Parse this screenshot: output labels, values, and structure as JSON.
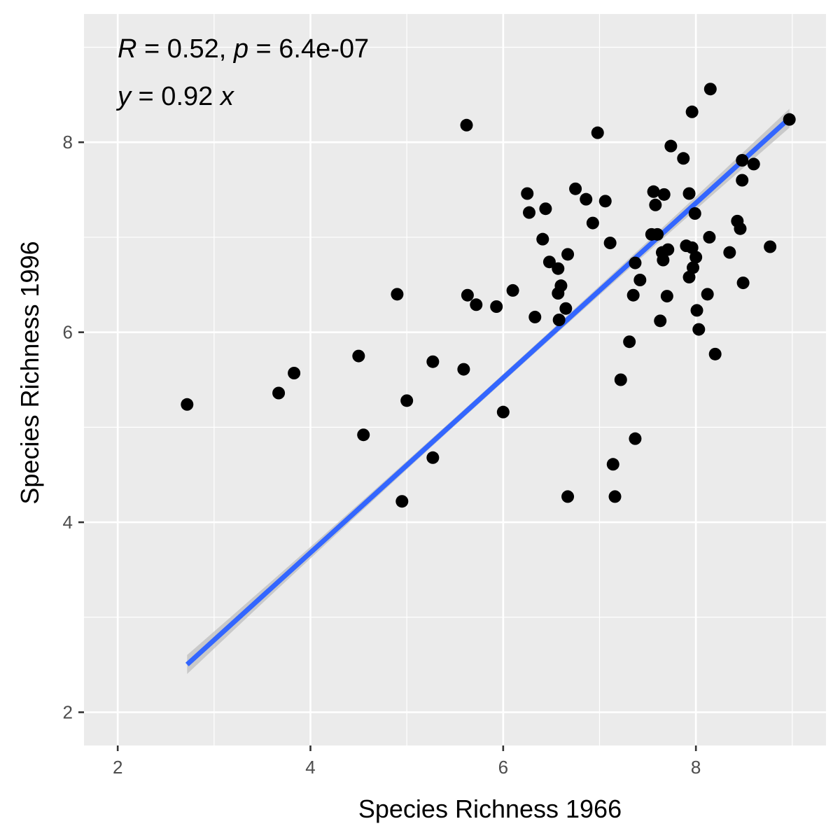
{
  "chart_data": {
    "type": "scatter",
    "xlabel": "Species Richness 1966",
    "ylabel": "Species Richness 1996",
    "xlim": [
      1.65,
      9.35
    ],
    "ylim": [
      1.65,
      9.35
    ],
    "x_ticks": [
      2,
      4,
      6,
      8
    ],
    "y_ticks": [
      2,
      4,
      6,
      8
    ],
    "x_tick_labels": [
      "2",
      "4",
      "6",
      "8"
    ],
    "y_tick_labels": [
      "2",
      "4",
      "6",
      "8"
    ],
    "grid": true,
    "legend": "none",
    "annotations": {
      "line1": {
        "R_symbol": "R",
        "R_text": " = 0.52, ",
        "p_symbol": "p",
        "p_text": " = 6.4e-07"
      },
      "line2": {
        "y_symbol": "y",
        "eq_text": " = 0.92 ",
        "x_symbol": "x"
      }
    },
    "regression": {
      "slope": 0.92,
      "intercept": 0,
      "x_range": [
        2.72,
        8.97
      ],
      "ci_halfwidth_ends": 0.1,
      "ci_halfwidth_center": 0.04,
      "line_color": "#3366FF",
      "ribbon_color": "#BEBEBE"
    },
    "point_color": "#000000",
    "panel_background": "#EBEBEB",
    "grid_color": "#FFFFFF",
    "points": [
      [
        2.72,
        5.24
      ],
      [
        3.67,
        5.36
      ],
      [
        3.83,
        5.57
      ],
      [
        4.5,
        5.75
      ],
      [
        4.55,
        4.92
      ],
      [
        4.9,
        6.4
      ],
      [
        4.95,
        4.22
      ],
      [
        5.0,
        5.28
      ],
      [
        5.27,
        5.69
      ],
      [
        5.27,
        4.68
      ],
      [
        5.59,
        5.61
      ],
      [
        5.62,
        8.18
      ],
      [
        5.63,
        6.39
      ],
      [
        5.72,
        6.29
      ],
      [
        5.93,
        6.27
      ],
      [
        6.0,
        5.16
      ],
      [
        6.1,
        6.44
      ],
      [
        6.25,
        7.46
      ],
      [
        6.27,
        7.26
      ],
      [
        6.33,
        6.16
      ],
      [
        6.41,
        6.98
      ],
      [
        6.44,
        7.3
      ],
      [
        6.48,
        6.74
      ],
      [
        6.57,
        6.67
      ],
      [
        6.57,
        6.41
      ],
      [
        6.6,
        6.49
      ],
      [
        6.58,
        6.13
      ],
      [
        6.65,
        6.25
      ],
      [
        6.67,
        6.82
      ],
      [
        6.67,
        4.27
      ],
      [
        6.75,
        7.51
      ],
      [
        6.86,
        7.4
      ],
      [
        6.93,
        7.15
      ],
      [
        6.98,
        8.1
      ],
      [
        7.06,
        7.38
      ],
      [
        7.11,
        6.94
      ],
      [
        7.14,
        4.61
      ],
      [
        7.16,
        4.27
      ],
      [
        7.22,
        5.5
      ],
      [
        7.31,
        5.9
      ],
      [
        7.35,
        6.39
      ],
      [
        7.37,
        6.73
      ],
      [
        7.37,
        4.88
      ],
      [
        7.42,
        6.55
      ],
      [
        7.54,
        7.03
      ],
      [
        7.56,
        7.48
      ],
      [
        7.58,
        7.34
      ],
      [
        7.6,
        7.03
      ],
      [
        7.63,
        6.12
      ],
      [
        7.65,
        6.84
      ],
      [
        7.66,
        6.76
      ],
      [
        7.67,
        7.45
      ],
      [
        7.7,
        6.38
      ],
      [
        7.71,
        6.87
      ],
      [
        7.74,
        7.96
      ],
      [
        7.87,
        7.83
      ],
      [
        7.9,
        6.91
      ],
      [
        7.93,
        6.58
      ],
      [
        7.93,
        7.46
      ],
      [
        7.96,
        8.32
      ],
      [
        7.96,
        6.89
      ],
      [
        7.97,
        6.68
      ],
      [
        7.99,
        7.25
      ],
      [
        8.0,
        6.79
      ],
      [
        8.01,
        6.23
      ],
      [
        8.03,
        6.03
      ],
      [
        8.12,
        6.4
      ],
      [
        8.14,
        7.0
      ],
      [
        8.15,
        8.56
      ],
      [
        8.2,
        5.77
      ],
      [
        8.35,
        6.84
      ],
      [
        8.43,
        7.17
      ],
      [
        8.46,
        7.09
      ],
      [
        8.48,
        7.81
      ],
      [
        8.48,
        7.6
      ],
      [
        8.49,
        6.52
      ],
      [
        8.6,
        7.77
      ],
      [
        8.77,
        6.9
      ],
      [
        8.97,
        8.24
      ]
    ]
  }
}
